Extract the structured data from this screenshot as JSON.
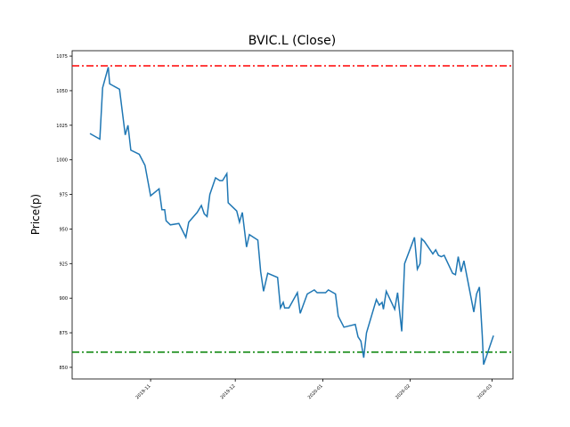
{
  "chart_data": {
    "type": "line",
    "title": "BVIC.L (Close)",
    "y_label": "Price(p)",
    "x": [
      -21.5,
      -18,
      -17,
      -15,
      -14.5,
      -11,
      -9,
      -8,
      -7,
      -4,
      -2,
      0,
      3,
      4,
      5,
      5.5,
      7,
      10,
      11,
      12.5,
      13.5,
      16.5,
      18,
      19,
      20,
      21,
      23,
      24.5,
      25.5,
      27,
      27.5,
      30.5,
      31.5,
      32.5,
      34,
      35,
      38,
      39,
      40,
      41.5,
      45,
      46,
      47,
      47.5,
      49,
      52,
      53,
      55.5,
      58,
      59,
      62,
      63,
      65.5,
      66.5,
      68.5,
      72.5,
      73.5,
      74.5,
      75.5,
      76.5,
      80,
      81,
      82,
      82.5,
      83.5,
      86.5,
      87.5,
      89,
      90,
      93.5,
      94.5,
      95.5,
      96,
      97,
      100,
      101,
      102,
      103,
      104,
      107,
      108,
      109,
      110,
      111,
      114.5,
      115.5,
      116.5,
      117.5,
      118,
      119,
      121.5
    ],
    "series": [
      {
        "name": "Close",
        "color": "#1f77b4",
        "values": [
          1019,
          1015,
          1052,
          1067,
          1055,
          1051,
          1018,
          1025,
          1007,
          1004,
          996,
          974,
          979,
          964,
          964,
          956,
          953,
          954,
          950,
          944,
          955,
          962,
          967,
          961,
          959,
          975,
          987,
          985,
          985,
          990,
          969,
          963,
          955,
          962,
          937,
          946,
          942,
          919,
          905,
          918,
          915,
          893,
          897,
          893,
          893,
          904,
          889,
          903,
          906,
          904,
          904,
          906,
          903,
          887,
          879,
          881,
          872,
          869,
          857,
          875,
          899,
          895,
          897,
          892,
          905,
          892,
          904,
          876,
          925,
          944,
          921,
          925,
          943,
          941,
          932,
          935,
          931,
          930,
          931,
          918,
          917,
          930,
          919,
          927,
          890,
          903,
          908,
          873,
          852,
          858,
          873
        ]
      }
    ],
    "hlines": [
      {
        "value": 1068,
        "color": "#ff0000"
      },
      {
        "value": 861,
        "color": "#008000"
      }
    ],
    "xlim": [
      -27.8,
      128.4
    ],
    "ylim": [
      841.6,
      1078.9
    ],
    "xticks": [
      {
        "value": 0,
        "label": "2019-11"
      },
      {
        "value": 30,
        "label": "2019-12"
      },
      {
        "value": 61,
        "label": "2020-01"
      },
      {
        "value": 92,
        "label": "2020-02"
      },
      {
        "value": 121,
        "label": "2020-03"
      }
    ],
    "yticks": [
      850,
      875,
      900,
      925,
      950,
      975,
      1000,
      1025,
      1050,
      1075
    ]
  }
}
